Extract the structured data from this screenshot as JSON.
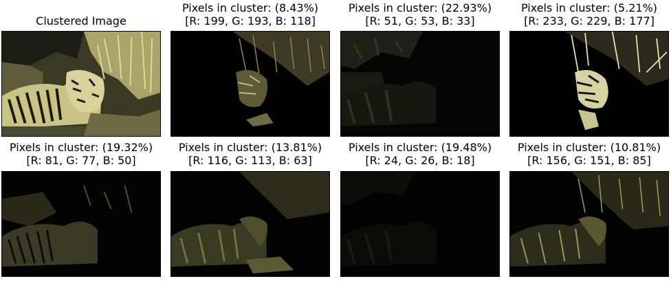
{
  "panels": [
    {
      "title_lines": [
        "Clustered Image"
      ],
      "image": "clustered-tiger-image",
      "tint": "#c7c176"
    },
    {
      "title_lines": [
        "Pixels in cluster: (8.43%)",
        "[R: 199, G: 193, B: 118]"
      ],
      "image": "cluster-1-mask-image",
      "tint": "#c7c176"
    },
    {
      "title_lines": [
        "Pixels in cluster: (22.93%)",
        "[R: 51, G: 53, B: 33]"
      ],
      "image": "cluster-2-mask-image",
      "tint": "#333521"
    },
    {
      "title_lines": [
        "Pixels in cluster: (5.21%)",
        "[R: 233, G: 229, B: 177]"
      ],
      "image": "cluster-3-mask-image",
      "tint": "#e9e5b1"
    },
    {
      "title_lines": [
        "Pixels in cluster: (19.32%)",
        "[R: 81, G: 77, B: 50]"
      ],
      "image": "cluster-4-mask-image",
      "tint": "#514d32"
    },
    {
      "title_lines": [
        "Pixels in cluster: (13.81%)",
        "[R: 116, G: 113, B: 63]"
      ],
      "image": "cluster-5-mask-image",
      "tint": "#74713f"
    },
    {
      "title_lines": [
        "Pixels in cluster: (19.48%)",
        "[R: 24, G: 26, B: 18]"
      ],
      "image": "cluster-6-mask-image",
      "tint": "#181a12"
    },
    {
      "title_lines": [
        "Pixels in cluster: (10.81%)",
        "[R: 156, G: 151, B: 85]"
      ],
      "image": "cluster-7-mask-image",
      "tint": "#9c9755"
    }
  ]
}
